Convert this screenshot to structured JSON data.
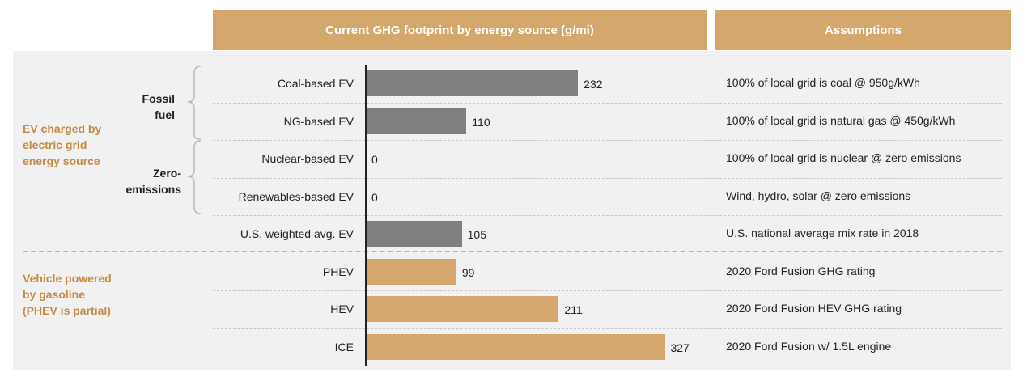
{
  "headers": {
    "chart": "Current GHG footprint by energy source (g/mi)",
    "assumptions": "Assumptions"
  },
  "groups": {
    "ev_grid": "EV charged by electric grid energy source",
    "gasoline": "Vehicle powered by gasoline (PHEV is partial)",
    "fossil": "Fossil fuel",
    "zero": "Zero-emissions"
  },
  "colors": {
    "grid_ev": "#7f7f7f",
    "gasoline": "#d4a76d",
    "header": "#d4a76d",
    "group_text": "#c48a45"
  },
  "chart_data": {
    "type": "bar",
    "orientation": "horizontal",
    "categories": [
      "Coal-based EV",
      "NG-based EV",
      "Nuclear-based EV",
      "Renewables-based EV",
      "U.S. weighted avg. EV",
      "PHEV",
      "HEV",
      "ICE"
    ],
    "values": [
      232,
      110,
      0,
      0,
      105,
      99,
      211,
      327
    ],
    "value_labels": [
      "232",
      "110",
      "0",
      "0",
      "105",
      "99",
      "211",
      "327"
    ],
    "bar_colors": [
      "#7f7f7f",
      "#7f7f7f",
      "#7f7f7f",
      "#7f7f7f",
      "#7f7f7f",
      "#d4a76d",
      "#d4a76d",
      "#d4a76d"
    ],
    "assumptions": [
      "100% of local grid is coal @ 950g/kWh",
      "100% of local grid is natural gas @ 450g/kWh",
      "100% of local grid is nuclear @ zero emissions",
      "Wind, hydro, solar @ zero emissions",
      "U.S. national average mix rate in 2018",
      "2020 Ford Fusion GHG rating",
      "2020 Ford Fusion HEV GHG rating",
      "2020 Ford Fusion w/ 1.5L engine"
    ],
    "title": "Current GHG footprint by energy source (g/mi)",
    "xlabel": "",
    "ylabel": "",
    "xlim": [
      0,
      350
    ],
    "grid": false,
    "legend": "none"
  }
}
